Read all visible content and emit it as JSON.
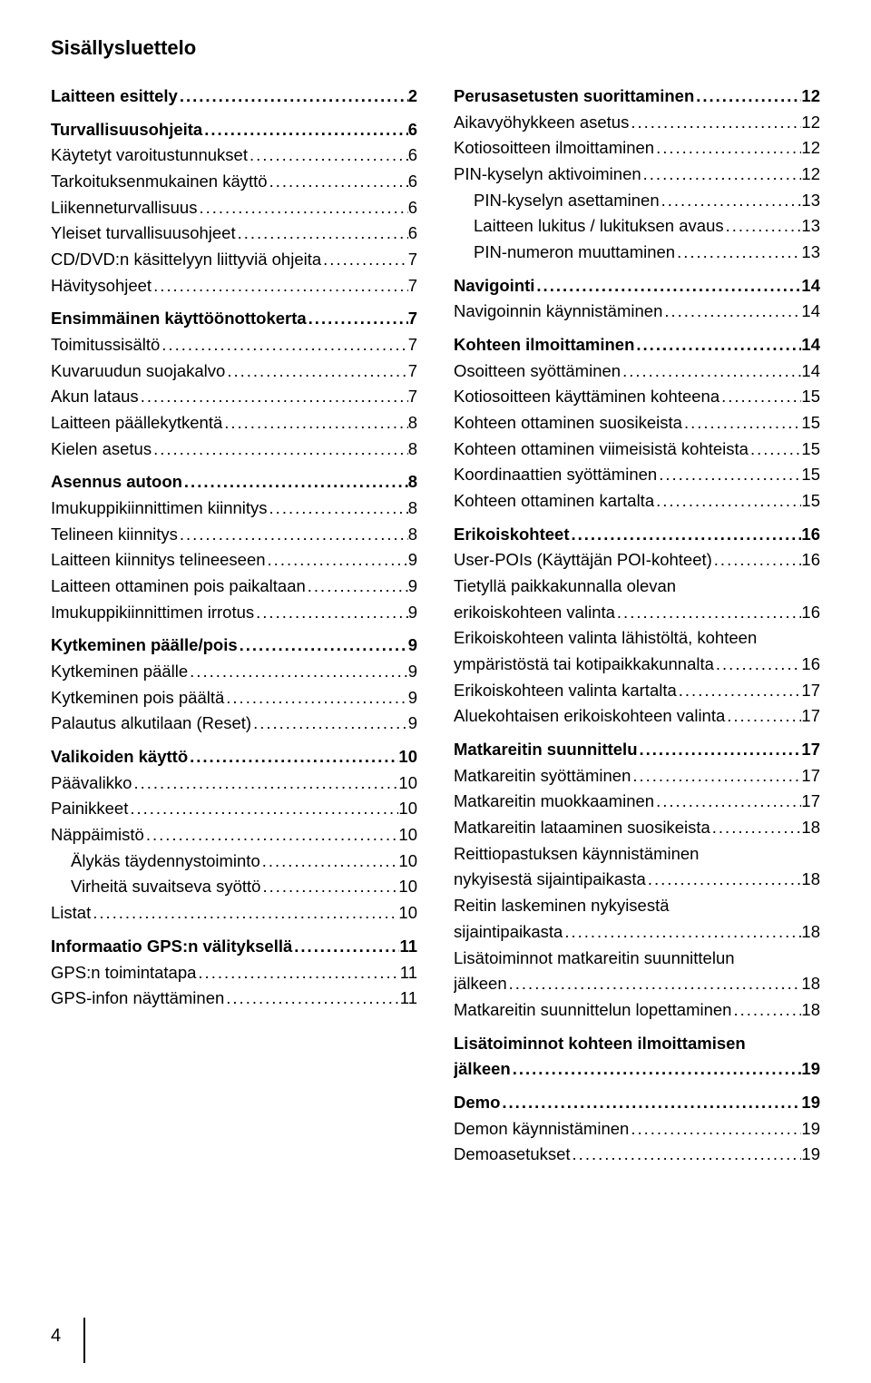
{
  "header": "Sisällysluettelo",
  "pagenum": "4",
  "left": [
    {
      "label": "Laitteen esittely",
      "pg": "2",
      "bold": true
    },
    {
      "spacer": true
    },
    {
      "label": "Turvallisuusohjeita",
      "pg": "6",
      "bold": true
    },
    {
      "label": "Käytetyt varoitustunnukset",
      "pg": "6"
    },
    {
      "label": "Tarkoituksenmukainen käyttö",
      "pg": "6"
    },
    {
      "label": "Liikenneturvallisuus",
      "pg": "6"
    },
    {
      "label": "Yleiset turvallisuusohjeet",
      "pg": "6"
    },
    {
      "label": "CD/DVD:n käsittelyyn liittyviä ohjeita",
      "pg": "7"
    },
    {
      "label": "Hävitysohjeet",
      "pg": "7"
    },
    {
      "spacer": true
    },
    {
      "label": "Ensimmäinen käyttöönottokerta",
      "pg": "7",
      "bold": true
    },
    {
      "label": "Toimitussisältö",
      "pg": "7"
    },
    {
      "label": "Kuvaruudun suojakalvo",
      "pg": "7"
    },
    {
      "label": "Akun lataus",
      "pg": "7"
    },
    {
      "label": "Laitteen päällekytkentä",
      "pg": "8"
    },
    {
      "label": "Kielen asetus",
      "pg": "8"
    },
    {
      "spacer": true
    },
    {
      "label": "Asennus autoon",
      "pg": "8",
      "bold": true
    },
    {
      "label": "Imukuppikiinnittimen kiinnitys",
      "pg": "8"
    },
    {
      "label": "Telineen kiinnitys",
      "pg": "8"
    },
    {
      "label": "Laitteen kiinnitys telineeseen",
      "pg": "9"
    },
    {
      "label": "Laitteen ottaminen pois paikaltaan",
      "pg": "9"
    },
    {
      "label": "Imukuppikiinnittimen irrotus",
      "pg": "9"
    },
    {
      "spacer": true
    },
    {
      "label": "Kytkeminen päälle/pois",
      "pg": "9",
      "bold": true
    },
    {
      "label": "Kytkeminen päälle",
      "pg": "9"
    },
    {
      "label": "Kytkeminen pois päältä",
      "pg": "9"
    },
    {
      "label": "Palautus alkutilaan (Reset)",
      "pg": "9"
    },
    {
      "spacer": true
    },
    {
      "label": "Valikoiden käyttö",
      "pg": "10",
      "bold": true
    },
    {
      "label": "Päävalikko",
      "pg": "10"
    },
    {
      "label": "Painikkeet",
      "pg": "10"
    },
    {
      "label": "Näppäimistö",
      "pg": "10"
    },
    {
      "label": "Älykäs täydennystoiminto",
      "pg": "10",
      "indent": 1
    },
    {
      "label": "Virheitä suvaitseva syöttö",
      "pg": "10",
      "indent": 1
    },
    {
      "label": "Listat",
      "pg": "10"
    },
    {
      "spacer": true
    },
    {
      "label": "Informaatio GPS:n välityksellä",
      "pg": "11",
      "bold": true
    },
    {
      "label": "GPS:n toimintatapa",
      "pg": "11"
    },
    {
      "label": "GPS-infon näyttäminen",
      "pg": "11"
    }
  ],
  "right": [
    {
      "label": "Perusasetusten suorittaminen",
      "pg": "12",
      "bold": true
    },
    {
      "label": "Aikavyöhykkeen asetus",
      "pg": "12"
    },
    {
      "label": "Kotiosoitteen ilmoittaminen",
      "pg": "12"
    },
    {
      "label": "PIN-kyselyn aktivoiminen",
      "pg": "12"
    },
    {
      "label": "PIN-kyselyn asettaminen",
      "pg": "13",
      "indent": 1
    },
    {
      "label": "Laitteen lukitus / lukituksen avaus",
      "pg": "13",
      "indent": 1
    },
    {
      "label": "PIN-numeron muuttaminen",
      "pg": "13",
      "indent": 1
    },
    {
      "spacer": true
    },
    {
      "label": "Navigointi",
      "pg": "14",
      "bold": true
    },
    {
      "label": "Navigoinnin käynnistäminen",
      "pg": "14"
    },
    {
      "spacer": true
    },
    {
      "label": "Kohteen ilmoittaminen",
      "pg": "14",
      "bold": true
    },
    {
      "label": "Osoitteen syöttäminen",
      "pg": "14"
    },
    {
      "label": "Kotiosoitteen käyttäminen kohteena",
      "pg": "15"
    },
    {
      "label": "Kohteen ottaminen suosikeista",
      "pg": "15"
    },
    {
      "label": "Kohteen ottaminen viimeisistä kohteista",
      "pg": "15"
    },
    {
      "label": "Koordinaattien syöttäminen",
      "pg": "15"
    },
    {
      "label": "Kohteen ottaminen kartalta",
      "pg": "15"
    },
    {
      "spacer": true
    },
    {
      "label": "Erikoiskohteet",
      "pg": "16",
      "bold": true
    },
    {
      "label": "User-POIs (Käyttäjän POI-kohteet)",
      "pg": "16"
    },
    {
      "label": "Tietyllä paikkakunnalla olevan",
      "nopg": true
    },
    {
      "label": "erikoiskohteen valinta",
      "pg": "16"
    },
    {
      "label": "Erikoiskohteen valinta lähistöltä, kohteen",
      "nopg": true
    },
    {
      "label": "ympäristöstä tai kotipaikkakunnalta",
      "pg": "16"
    },
    {
      "label": "Erikoiskohteen valinta kartalta",
      "pg": "17"
    },
    {
      "label": "Aluekohtaisen erikoiskohteen valinta",
      "pg": "17"
    },
    {
      "spacer": true
    },
    {
      "label": "Matkareitin suunnittelu",
      "pg": "17",
      "bold": true
    },
    {
      "label": "Matkareitin syöttäminen",
      "pg": "17"
    },
    {
      "label": "Matkareitin muokkaaminen",
      "pg": "17"
    },
    {
      "label": "Matkareitin lataaminen suosikeista",
      "pg": "18"
    },
    {
      "label": "Reittiopastuksen käynnistäminen",
      "nopg": true
    },
    {
      "label": "nykyisestä sijaintipaikasta",
      "pg": "18"
    },
    {
      "label": "Reitin laskeminen nykyisestä",
      "nopg": true
    },
    {
      "label": "sijaintipaikasta",
      "pg": "18"
    },
    {
      "label": "Lisätoiminnot matkareitin suunnittelun",
      "nopg": true
    },
    {
      "label": "jälkeen",
      "pg": "18"
    },
    {
      "label": "Matkareitin suunnittelun lopettaminen",
      "pg": "18"
    },
    {
      "spacer": true
    },
    {
      "label": "Lisätoiminnot kohteen ilmoittamisen",
      "bold": true,
      "nopg": true
    },
    {
      "label": "jälkeen",
      "pg": "19",
      "bold": true
    },
    {
      "spacer": true
    },
    {
      "label": "Demo",
      "pg": "19",
      "bold": true
    },
    {
      "label": "Demon käynnistäminen",
      "pg": "19"
    },
    {
      "label": "Demoasetukset",
      "pg": "19"
    }
  ]
}
